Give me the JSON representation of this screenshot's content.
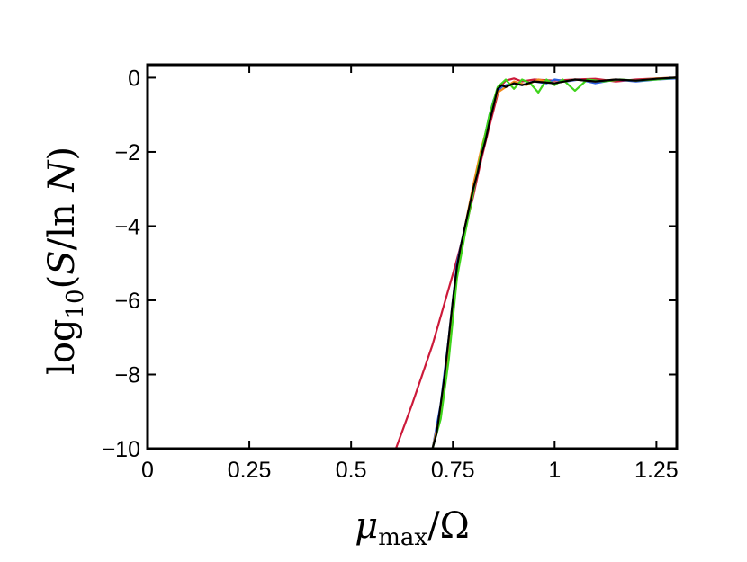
{
  "chart_data": {
    "type": "line",
    "title": "",
    "xlabel": "μmax/Ω",
    "ylabel": "log10(S/ln N)",
    "xlim": [
      0,
      1.3
    ],
    "ylim": [
      -10,
      0.35
    ],
    "xticks": [
      0,
      0.25,
      0.5,
      0.75,
      1,
      1.25
    ],
    "xtick_labels": [
      "0",
      "0.25",
      "0.5",
      "0.75",
      "1",
      "1.25"
    ],
    "yticks": [
      0,
      -2,
      -4,
      -6,
      -8,
      -10
    ],
    "ytick_labels": [
      "0",
      "−2",
      "−4",
      "−6",
      "−8",
      "−10"
    ],
    "grid": false,
    "legend": "none",
    "series": [
      {
        "color": "#cc1a3a",
        "x": [
          0.61,
          0.65,
          0.7,
          0.75,
          0.78,
          0.8,
          0.82,
          0.84,
          0.86,
          0.87,
          0.88,
          0.9,
          0.92,
          0.95,
          1.0,
          1.05,
          1.1,
          1.15,
          1.2,
          1.25,
          1.3
        ],
        "y": [
          -10,
          -8.8,
          -7.2,
          -5.3,
          -4.1,
          -3.2,
          -2.2,
          -1.3,
          -0.45,
          -0.2,
          -0.08,
          -0.02,
          -0.1,
          -0.05,
          -0.08,
          -0.05,
          -0.03,
          -0.1,
          -0.05,
          -0.02,
          0
        ]
      },
      {
        "color": "#2b5fe3",
        "x": [
          0.7,
          0.72,
          0.74,
          0.76,
          0.78,
          0.8,
          0.82,
          0.84,
          0.85,
          0.86,
          0.87,
          0.88,
          0.9,
          0.92,
          0.95,
          0.98,
          1.0,
          1.03,
          1.06,
          1.1,
          1.15,
          1.2,
          1.25,
          1.3
        ],
        "y": [
          -10,
          -8.8,
          -7.0,
          -5.0,
          -4.0,
          -3.0,
          -2.0,
          -1.0,
          -0.6,
          -0.35,
          -0.25,
          -0.2,
          -0.15,
          -0.2,
          -0.1,
          -0.15,
          -0.05,
          -0.1,
          -0.05,
          -0.15,
          -0.05,
          -0.1,
          -0.05,
          -0.02
        ]
      },
      {
        "color": "#f08a1c",
        "x": [
          0.7,
          0.72,
          0.74,
          0.76,
          0.78,
          0.8,
          0.82,
          0.84,
          0.86,
          0.88,
          0.9,
          0.93,
          0.96,
          1.0,
          1.05,
          1.1,
          1.15,
          1.2,
          1.25,
          1.3
        ],
        "y": [
          -10,
          -9.0,
          -7.4,
          -5.2,
          -4.0,
          -2.9,
          -1.9,
          -1.1,
          -0.4,
          -0.25,
          -0.1,
          -0.2,
          -0.05,
          -0.15,
          -0.05,
          -0.1,
          -0.05,
          -0.08,
          -0.02,
          0
        ]
      },
      {
        "color": "#3fd41c",
        "x": [
          0.7,
          0.72,
          0.74,
          0.76,
          0.78,
          0.8,
          0.82,
          0.84,
          0.86,
          0.88,
          0.9,
          0.92,
          0.94,
          0.96,
          0.98,
          1.0,
          1.02,
          1.05,
          1.08,
          1.12,
          1.16,
          1.2,
          1.25,
          1.3
        ],
        "y": [
          -10,
          -9.2,
          -7.6,
          -5.4,
          -4.2,
          -3.1,
          -2.0,
          -1.0,
          -0.25,
          -0.05,
          -0.3,
          -0.05,
          -0.15,
          -0.4,
          -0.05,
          -0.2,
          -0.05,
          -0.35,
          -0.05,
          -0.1,
          -0.05,
          -0.08,
          -0.05,
          0
        ]
      },
      {
        "color": "#000000",
        "x": [
          0.7,
          0.71,
          0.72,
          0.73,
          0.74,
          0.75,
          0.76,
          0.77,
          0.78,
          0.79,
          0.8,
          0.81,
          0.82,
          0.83,
          0.84,
          0.85,
          0.86,
          0.87,
          0.88,
          0.9,
          0.92,
          0.95,
          1.0,
          1.05,
          1.1,
          1.15,
          1.2,
          1.25,
          1.3
        ],
        "y": [
          -10,
          -9.6,
          -8.8,
          -8.0,
          -7.0,
          -6.0,
          -5.1,
          -4.5,
          -4.0,
          -3.5,
          -3.0,
          -2.6,
          -2.1,
          -1.7,
          -1.2,
          -0.75,
          -0.3,
          -0.2,
          -0.25,
          -0.15,
          -0.2,
          -0.1,
          -0.15,
          -0.05,
          -0.1,
          -0.05,
          -0.08,
          -0.03,
          0
        ]
      }
    ]
  }
}
